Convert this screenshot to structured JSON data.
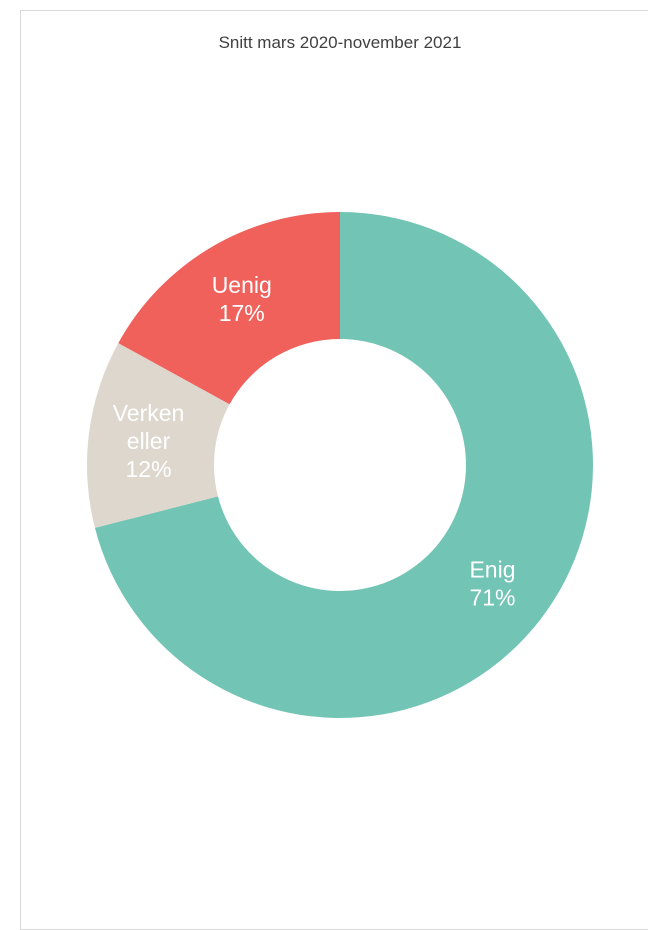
{
  "chart_data": {
    "type": "pie",
    "variant": "donut",
    "title": "Snitt mars 2020-november 2021",
    "slices": [
      {
        "name": "Enig",
        "value": 71,
        "label": "71%",
        "color": "#72c4b4",
        "label_lines": [
          "Enig",
          "71%"
        ]
      },
      {
        "name": "Verken eller",
        "value": 12,
        "label": "12%",
        "color": "#ddd7ce",
        "label_lines": [
          "Verken",
          "eller",
          "12%"
        ]
      },
      {
        "name": "Uenig",
        "value": 17,
        "label": "17%",
        "color": "#f0615c",
        "label_lines": [
          "Uenig",
          "17%"
        ]
      }
    ],
    "legend": "none"
  }
}
